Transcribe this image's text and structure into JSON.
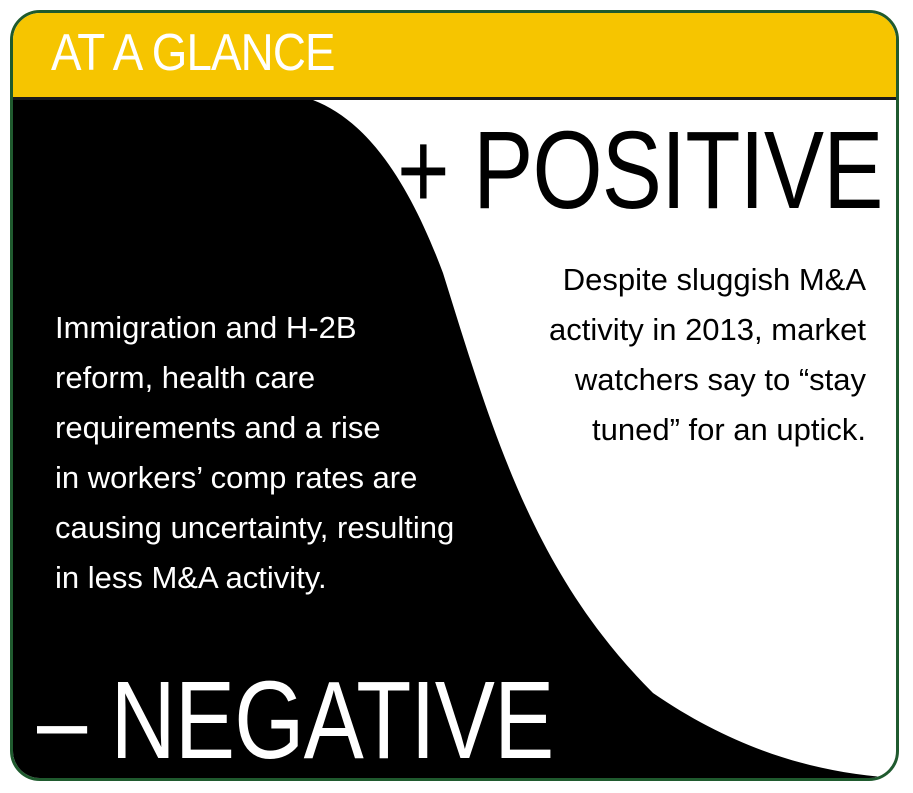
{
  "header": {
    "title": "AT A GLANCE"
  },
  "positive": {
    "title": "+ POSITIVE",
    "text": "Despite sluggish M&A\nactivity in 2013, market\nwatchers say to “stay\ntuned” for an uptick."
  },
  "negative": {
    "title": "– NEGATIVE",
    "text": "Immigration and H-2B\nreform, health care\nrequirements and a rise\nin workers’ comp rates are\ncausing uncertainty, resulting\nin less M&A activity."
  },
  "colors": {
    "header_band": "#f6c500",
    "border": "#1f5a2e",
    "negative_fill": "#000000",
    "positive_fill": "#ffffff"
  }
}
